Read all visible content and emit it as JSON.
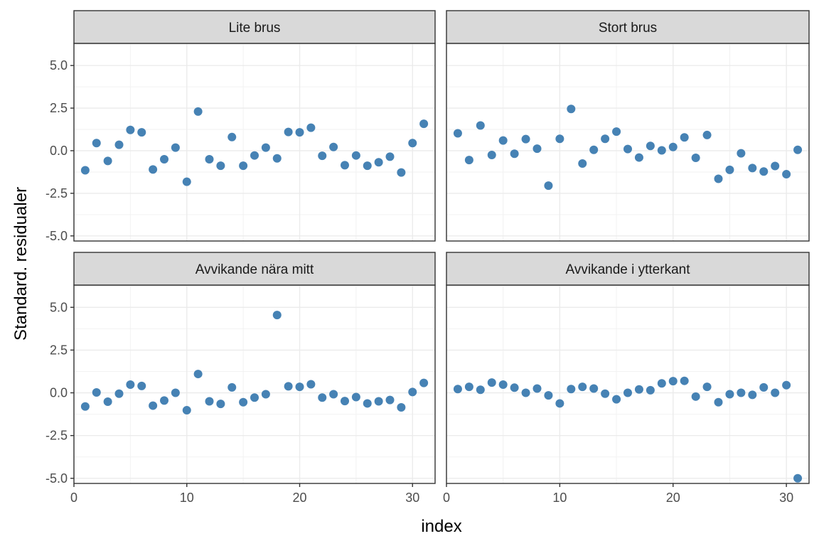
{
  "chart_data": {
    "type": "scatter",
    "xlabel": "index",
    "ylabel": "Standard. residualer",
    "xlim": [
      0,
      32
    ],
    "ylim": [
      -5.3,
      6.3
    ],
    "x_ticks": [
      0,
      10,
      20,
      30
    ],
    "y_ticks": [
      5.0,
      2.5,
      0.0,
      -2.5,
      -5.0
    ],
    "x_tick_labels": [
      "0",
      "10",
      "20",
      "30"
    ],
    "y_tick_labels": [
      "5.0",
      "2.5",
      "0.0",
      "-2.5",
      "-5.0"
    ],
    "grid": true,
    "point_color": "#4682b4",
    "panels": [
      {
        "title": "Lite brus",
        "x": [
          1,
          2,
          3,
          4,
          5,
          6,
          7,
          8,
          9,
          10,
          11,
          12,
          13,
          14,
          15,
          16,
          17,
          18,
          19,
          20,
          21,
          22,
          23,
          24,
          25,
          26,
          27,
          28,
          29,
          30,
          31
        ],
        "y": [
          -1.15,
          0.45,
          -0.6,
          0.35,
          1.22,
          1.08,
          -1.1,
          -0.5,
          0.18,
          -1.82,
          2.3,
          -0.5,
          -0.88,
          0.8,
          -0.88,
          -0.28,
          0.18,
          -0.45,
          1.1,
          1.08,
          1.35,
          -0.3,
          0.22,
          -0.85,
          -0.28,
          -0.88,
          -0.68,
          -0.35,
          -1.28,
          0.45,
          1.58
        ]
      },
      {
        "title": "Stort brus",
        "x": [
          1,
          2,
          3,
          4,
          5,
          6,
          7,
          8,
          9,
          10,
          11,
          12,
          13,
          14,
          15,
          16,
          17,
          18,
          19,
          20,
          21,
          22,
          23,
          24,
          25,
          26,
          27,
          28,
          29,
          30,
          31
        ],
        "y": [
          1.02,
          -0.55,
          1.48,
          -0.25,
          0.6,
          -0.18,
          0.68,
          0.12,
          -2.05,
          0.7,
          2.45,
          -0.75,
          0.05,
          0.7,
          1.12,
          0.1,
          -0.4,
          0.28,
          0.02,
          0.22,
          0.78,
          -0.42,
          0.92,
          -1.65,
          -1.12,
          -0.15,
          -1.02,
          -1.22,
          -0.9,
          -1.38,
          0.05
        ]
      },
      {
        "title": "Avvikande nära mitt",
        "x": [
          1,
          2,
          3,
          4,
          5,
          6,
          7,
          8,
          9,
          10,
          11,
          12,
          13,
          14,
          15,
          16,
          17,
          18,
          19,
          20,
          21,
          22,
          23,
          24,
          25,
          26,
          27,
          28,
          29,
          30,
          31
        ],
        "y": [
          -0.8,
          0.02,
          -0.52,
          -0.05,
          0.48,
          0.4,
          -0.75,
          -0.45,
          0.0,
          -1.02,
          1.1,
          -0.5,
          -0.65,
          0.32,
          -0.55,
          -0.28,
          -0.08,
          4.55,
          0.38,
          0.35,
          0.5,
          -0.28,
          -0.08,
          -0.48,
          -0.25,
          -0.62,
          -0.5,
          -0.42,
          -0.85,
          0.05,
          0.58
        ]
      },
      {
        "title": "Avvikande i ytterkant",
        "x": [
          1,
          2,
          3,
          4,
          5,
          6,
          7,
          8,
          9,
          10,
          11,
          12,
          13,
          14,
          15,
          16,
          17,
          18,
          19,
          20,
          21,
          22,
          23,
          24,
          25,
          26,
          27,
          28,
          29,
          30,
          31
        ],
        "y": [
          0.22,
          0.35,
          0.18,
          0.6,
          0.48,
          0.3,
          0.0,
          0.25,
          -0.15,
          -0.62,
          0.22,
          0.35,
          0.25,
          -0.05,
          -0.38,
          0.0,
          0.2,
          0.15,
          0.55,
          0.68,
          0.7,
          -0.22,
          0.35,
          -0.55,
          -0.08,
          0.0,
          -0.12,
          0.32,
          0.0,
          0.45,
          -5.0
        ]
      }
    ]
  }
}
